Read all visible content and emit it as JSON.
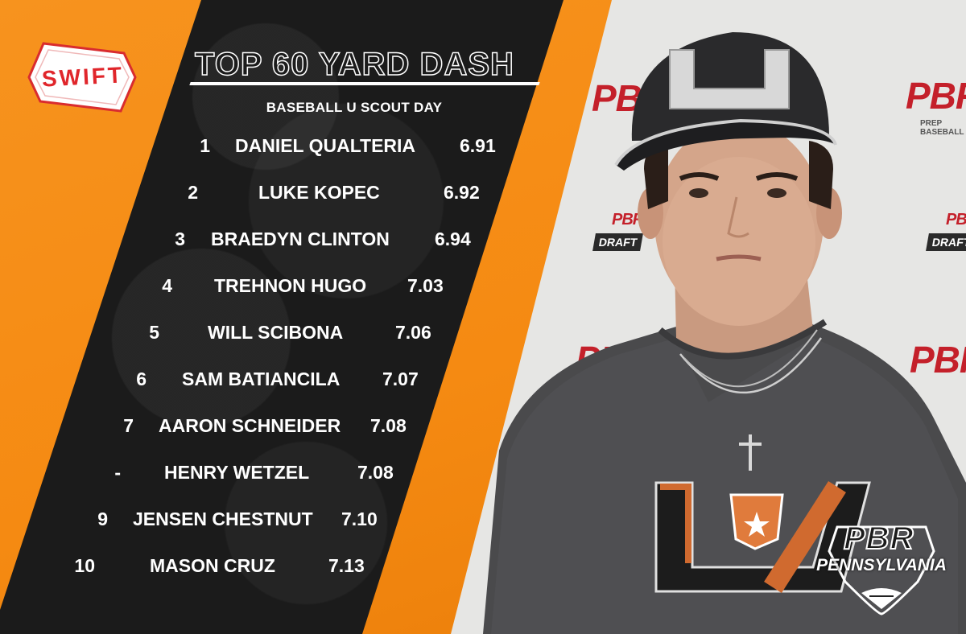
{
  "brand": {
    "swift_logo_text": "SWIFT",
    "pbr_logo_text": "PBR",
    "pbr_region_text": "PENNSYLVANIA",
    "background_logos": [
      "PBR",
      "PREP BASEBALL",
      "DRAFT"
    ]
  },
  "header": {
    "title": "TOP 60 YARD DASH",
    "subtitle": "BASEBALL U SCOUT DAY"
  },
  "rankings": [
    {
      "rank": "1",
      "name": "DANIEL QUALTERIA",
      "time": "6.91"
    },
    {
      "rank": "2",
      "name": "LUKE KOPEC",
      "time": "6.92"
    },
    {
      "rank": "3",
      "name": "BRAEDYN CLINTON",
      "time": "6.94"
    },
    {
      "rank": "4",
      "name": "TREHNON HUGO",
      "time": "7.03"
    },
    {
      "rank": "5",
      "name": "WILL SCIBONA",
      "time": "7.06"
    },
    {
      "rank": "6",
      "name": "SAM BATIANCILA",
      "time": "7.07"
    },
    {
      "rank": "7",
      "name": "AARON SCHNEIDER",
      "time": "7.08"
    },
    {
      "rank": "-",
      "name": "HENRY WETZEL",
      "time": "7.08"
    },
    {
      "rank": "9",
      "name": "JENSEN CHESTNUT",
      "time": "7.10"
    },
    {
      "rank": "10",
      "name": "MASON CRUZ",
      "time": "7.13"
    }
  ],
  "colors": {
    "accent_orange": "#f7931e",
    "panel_dark": "#1b1b1b",
    "pbr_red": "#c4202a",
    "text_white": "#ffffff"
  },
  "icons": [
    "swift-logo-icon",
    "pbr-pennsylvania-logo-icon",
    "player-photo"
  ]
}
